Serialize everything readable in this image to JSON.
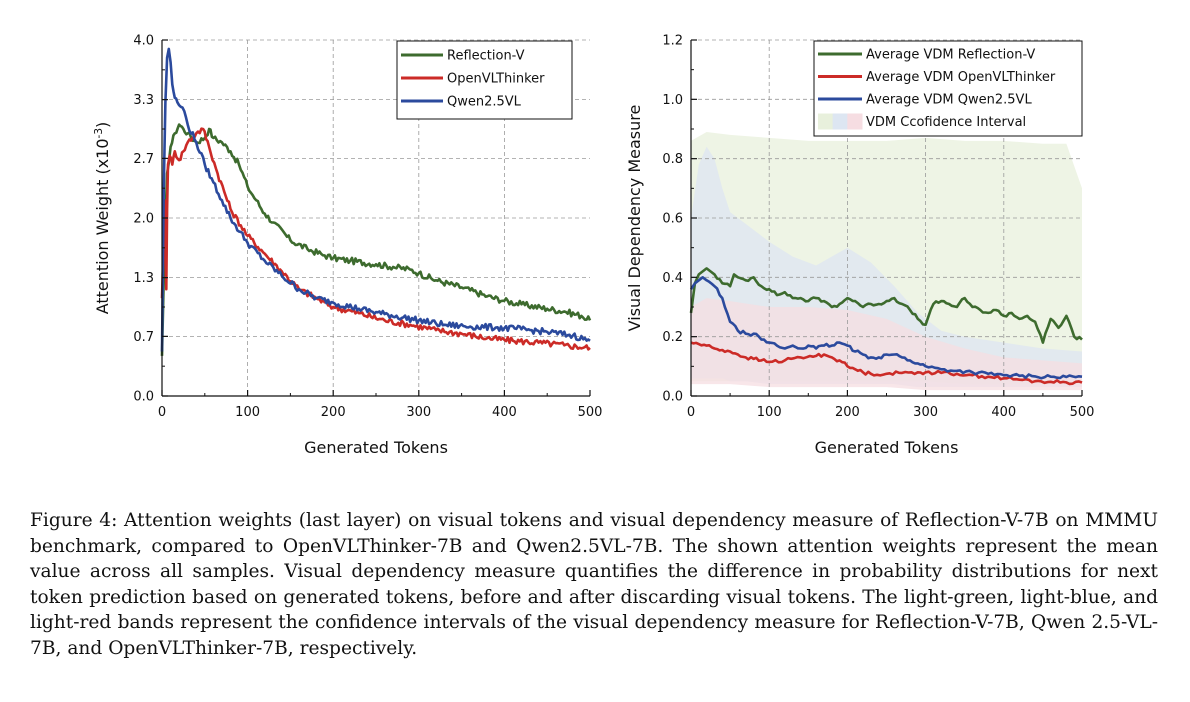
{
  "chart_data": [
    {
      "type": "line",
      "ylabel": "Attention Weight (x10",
      "ylabel_exponent": "-3",
      "ylabel_close": ")",
      "xlabel": "Generated Tokens",
      "xlim": [
        0,
        500
      ],
      "ylim": [
        0,
        4.0
      ],
      "x_ticks": [
        "0",
        "100",
        "200",
        "300",
        "400",
        "500"
      ],
      "y_ticks": [
        "0.0",
        "0.7",
        "1.3",
        "2.0",
        "2.7",
        "3.3",
        "4.0"
      ],
      "y_tick_values": [
        0.0,
        0.67,
        1.33,
        2.0,
        2.67,
        3.33,
        4.0
      ],
      "grid": true,
      "legend_position": "top-right",
      "series": [
        {
          "name": "Reflection-V",
          "color": "#3d6b2e",
          "x": [
            0,
            3,
            6,
            10,
            15,
            20,
            25,
            30,
            40,
            50,
            55,
            60,
            70,
            80,
            90,
            100,
            110,
            120,
            130,
            150,
            170,
            190,
            200,
            220,
            250,
            270,
            290,
            300,
            320,
            350,
            380,
            400,
            420,
            450,
            470,
            490,
            500
          ],
          "y": [
            0.45,
            1.7,
            2.5,
            2.8,
            2.95,
            3.05,
            3.0,
            2.95,
            2.85,
            2.9,
            3.0,
            2.9,
            2.85,
            2.75,
            2.6,
            2.35,
            2.2,
            2.05,
            1.95,
            1.75,
            1.65,
            1.58,
            1.55,
            1.52,
            1.48,
            1.45,
            1.42,
            1.38,
            1.3,
            1.22,
            1.12,
            1.07,
            1.03,
            0.98,
            0.95,
            0.9,
            0.85
          ]
        },
        {
          "name": "OpenVLThinker",
          "color": "#cc2b27",
          "x": [
            0,
            3,
            5,
            6,
            7,
            9,
            12,
            15,
            20,
            25,
            30,
            40,
            48,
            55,
            65,
            80,
            100,
            120,
            140,
            160,
            180,
            200,
            230,
            260,
            290,
            320,
            350,
            380,
            410,
            440,
            470,
            500
          ],
          "y": [
            1.1,
            2.2,
            1.2,
            2.1,
            2.6,
            2.7,
            2.6,
            2.75,
            2.65,
            2.75,
            2.85,
            2.95,
            3.0,
            2.8,
            2.5,
            2.1,
            1.8,
            1.6,
            1.4,
            1.2,
            1.1,
            1.0,
            0.93,
            0.85,
            0.8,
            0.74,
            0.7,
            0.65,
            0.62,
            0.6,
            0.57,
            0.54
          ]
        },
        {
          "name": "Qwen2.5VL",
          "color": "#2b4a9d",
          "x": [
            0,
            2,
            4,
            6,
            8,
            10,
            12,
            15,
            18,
            22,
            26,
            30,
            40,
            50,
            60,
            70,
            80,
            100,
            120,
            140,
            160,
            180,
            200,
            230,
            260,
            300,
            330,
            360,
            390,
            420,
            450,
            480,
            500
          ],
          "y": [
            0.5,
            2.3,
            3.3,
            3.8,
            3.9,
            3.75,
            3.5,
            3.35,
            3.3,
            3.25,
            3.2,
            3.05,
            2.85,
            2.6,
            2.4,
            2.2,
            2.0,
            1.72,
            1.52,
            1.35,
            1.2,
            1.1,
            1.05,
            0.98,
            0.92,
            0.85,
            0.8,
            0.78,
            0.77,
            0.75,
            0.72,
            0.68,
            0.62
          ]
        }
      ]
    },
    {
      "type": "line",
      "ylabel": "Visual Dependency Measure",
      "xlabel": "Generated Tokens",
      "xlim": [
        0,
        500
      ],
      "ylim": [
        0,
        1.2
      ],
      "x_ticks": [
        "0",
        "100",
        "200",
        "300",
        "400",
        "500"
      ],
      "y_ticks": [
        "0.0",
        "0.2",
        "0.4",
        "0.6",
        "0.8",
        "1.0",
        "1.2"
      ],
      "y_tick_values": [
        0.0,
        0.2,
        0.4,
        0.6,
        0.8,
        1.0,
        1.2
      ],
      "grid": true,
      "legend_position": "top-right",
      "series": [
        {
          "name": "Average VDM Reflection-V",
          "color": "#3d6b2e",
          "x": [
            0,
            5,
            10,
            15,
            20,
            25,
            30,
            40,
            50,
            55,
            60,
            70,
            80,
            90,
            100,
            110,
            120,
            130,
            140,
            150,
            160,
            170,
            180,
            190,
            200,
            210,
            220,
            230,
            240,
            250,
            260,
            270,
            280,
            290,
            300,
            310,
            320,
            330,
            340,
            350,
            360,
            370,
            380,
            390,
            400,
            410,
            420,
            430,
            440,
            450,
            460,
            470,
            480,
            490,
            500
          ],
          "y": [
            0.28,
            0.38,
            0.41,
            0.42,
            0.43,
            0.42,
            0.41,
            0.38,
            0.37,
            0.41,
            0.4,
            0.39,
            0.4,
            0.37,
            0.36,
            0.34,
            0.35,
            0.33,
            0.33,
            0.32,
            0.33,
            0.32,
            0.3,
            0.31,
            0.33,
            0.32,
            0.3,
            0.31,
            0.31,
            0.32,
            0.33,
            0.31,
            0.29,
            0.26,
            0.24,
            0.31,
            0.32,
            0.31,
            0.3,
            0.33,
            0.3,
            0.29,
            0.28,
            0.29,
            0.27,
            0.28,
            0.26,
            0.27,
            0.25,
            0.18,
            0.26,
            0.23,
            0.27,
            0.2,
            0.19
          ]
        },
        {
          "name": "Average VDM OpenVLThinker",
          "color": "#cc2b27",
          "x": [
            0,
            10,
            20,
            30,
            40,
            50,
            60,
            70,
            80,
            90,
            100,
            120,
            140,
            160,
            170,
            180,
            190,
            200,
            210,
            220,
            230,
            250,
            270,
            290,
            300,
            320,
            340,
            360,
            380,
            400,
            420,
            440,
            460,
            480,
            500
          ],
          "y": [
            0.18,
            0.175,
            0.17,
            0.16,
            0.155,
            0.15,
            0.14,
            0.13,
            0.125,
            0.12,
            0.115,
            0.12,
            0.13,
            0.135,
            0.14,
            0.13,
            0.12,
            0.1,
            0.09,
            0.08,
            0.075,
            0.075,
            0.078,
            0.08,
            0.08,
            0.078,
            0.075,
            0.07,
            0.065,
            0.06,
            0.055,
            0.05,
            0.048,
            0.046,
            0.045
          ]
        },
        {
          "name": "Average VDM Qwen2.5VL",
          "color": "#2b4a9d",
          "x": [
            0,
            5,
            10,
            15,
            20,
            30,
            40,
            50,
            60,
            70,
            80,
            90,
            100,
            110,
            120,
            130,
            140,
            150,
            160,
            170,
            180,
            190,
            200,
            210,
            220,
            230,
            240,
            250,
            260,
            270,
            280,
            290,
            300,
            320,
            340,
            360,
            380,
            400,
            420,
            440,
            460,
            480,
            500
          ],
          "y": [
            0.36,
            0.38,
            0.39,
            0.4,
            0.39,
            0.37,
            0.33,
            0.25,
            0.22,
            0.21,
            0.21,
            0.19,
            0.18,
            0.17,
            0.16,
            0.17,
            0.16,
            0.17,
            0.16,
            0.17,
            0.17,
            0.18,
            0.17,
            0.15,
            0.14,
            0.13,
            0.13,
            0.14,
            0.14,
            0.13,
            0.12,
            0.11,
            0.1,
            0.09,
            0.085,
            0.08,
            0.075,
            0.07,
            0.068,
            0.066,
            0.065,
            0.064,
            0.065
          ]
        }
      ],
      "bands": [
        {
          "name": "Reflection-V",
          "color": "#e8f0dc",
          "x": [
            0,
            20,
            50,
            100,
            150,
            200,
            250,
            300,
            350,
            400,
            450,
            480,
            500
          ],
          "lower": [
            0.05,
            0.05,
            0.05,
            0.05,
            0.05,
            0.05,
            0.05,
            0.05,
            0.04,
            0.04,
            0.04,
            0.04,
            0.04
          ],
          "upper": [
            0.86,
            0.89,
            0.88,
            0.87,
            0.86,
            0.86,
            0.86,
            0.87,
            0.86,
            0.86,
            0.85,
            0.85,
            0.7
          ]
        },
        {
          "name": "Qwen2.5VL",
          "color": "#dde6f2",
          "x": [
            0,
            10,
            20,
            30,
            40,
            50,
            70,
            100,
            130,
            160,
            200,
            230,
            260,
            290,
            320,
            350,
            400,
            450,
            500
          ],
          "lower": [
            0.06,
            0.06,
            0.06,
            0.06,
            0.06,
            0.05,
            0.05,
            0.04,
            0.04,
            0.04,
            0.04,
            0.04,
            0.04,
            0.03,
            0.03,
            0.03,
            0.03,
            0.03,
            0.03
          ],
          "upper": [
            0.6,
            0.78,
            0.84,
            0.8,
            0.7,
            0.62,
            0.58,
            0.52,
            0.47,
            0.44,
            0.5,
            0.45,
            0.37,
            0.28,
            0.22,
            0.2,
            0.18,
            0.16,
            0.15
          ]
        },
        {
          "name": "OpenVLThinker",
          "color": "#f6dde2",
          "x": [
            0,
            20,
            50,
            100,
            150,
            200,
            250,
            300,
            350,
            400,
            450,
            500
          ],
          "lower": [
            0.04,
            0.04,
            0.04,
            0.03,
            0.03,
            0.03,
            0.03,
            0.02,
            0.02,
            0.02,
            0.02,
            0.02
          ],
          "upper": [
            0.3,
            0.33,
            0.32,
            0.3,
            0.3,
            0.29,
            0.26,
            0.2,
            0.16,
            0.13,
            0.12,
            0.11
          ]
        }
      ],
      "band_legend_label": "VDM Ccofidence Interval",
      "band_legend_colors": [
        "#e8f0dc",
        "#dde6f2",
        "#f6dde2"
      ]
    }
  ],
  "caption": "Figure 4: Attention weights (last layer) on visual tokens and visual dependency measure of Reflection-V-7B on MMMU benchmark, compared to OpenVLThinker-7B and Qwen2.5VL-7B. The shown attention weights represent the mean value across all samples. Visual dependency measure quantifies the difference in probability distributions for next token prediction based on generated tokens, before and after discarding visual tokens. The light-green, light-blue, and light-red bands represent the confidence intervals of the visual dependency measure for Reflection-V-7B, Qwen 2.5-VL-7B, and OpenVLThinker-7B, respectively."
}
